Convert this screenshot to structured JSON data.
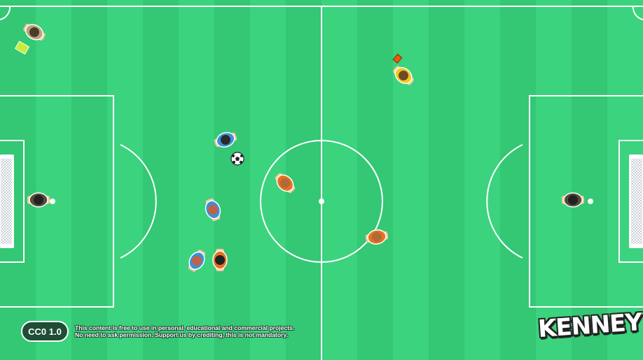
{
  "game": {
    "title": "Top-down soccer field",
    "colors": {
      "grass_light": "#3bd37e",
      "grass_dark": "#34c774",
      "lines": "#ffffff",
      "team_blue": "#3d8fd6",
      "team_orange": "#e8721c",
      "referee_yellow": "#f2c81a",
      "goalkeeper_dark": "#5a4a3a"
    },
    "players": [
      {
        "name": "linesman",
        "role": "assistant-referee",
        "shirt": "#b9a47a",
        "hair": "#4a3b2a",
        "icon": "flag-icon"
      },
      {
        "name": "referee",
        "role": "referee",
        "shirt": "#f2c81a",
        "hair": "#6b4a2a",
        "icon": "card-icon"
      },
      {
        "name": "blue-player-1",
        "role": "outfield",
        "shirt": "#3d8fd6",
        "hair": "#2a2a2a"
      },
      {
        "name": "blue-player-2",
        "role": "outfield",
        "shirt": "#3d8fd6",
        "hair": "#c0614a"
      },
      {
        "name": "blue-player-3",
        "role": "outfield",
        "shirt": "#3d8fd6",
        "hair": "#c0614a"
      },
      {
        "name": "orange-player-1",
        "role": "outfield",
        "shirt": "#e8721c",
        "hair": "#b06a3a"
      },
      {
        "name": "orange-player-2",
        "role": "outfield",
        "shirt": "#e8721c",
        "hair": "#b06a3a"
      },
      {
        "name": "orange-player-3",
        "role": "outfield",
        "shirt": "#e8721c",
        "hair": "#222222"
      },
      {
        "name": "goalkeeper-left",
        "role": "goalkeeper",
        "shirt": "#5a4a3a",
        "hair": "#222222"
      },
      {
        "name": "goalkeeper-right",
        "role": "goalkeeper",
        "shirt": "#5a4a3a",
        "hair": "#222222"
      }
    ]
  },
  "footer": {
    "license_badge": "CC0 1.0",
    "notice_line1": "This content is free to use in personal, educational and commercial projects.",
    "notice_line2": "No need to ask permission. Support us by crediting, this is not mandatory.",
    "logo": "KENNEY"
  }
}
